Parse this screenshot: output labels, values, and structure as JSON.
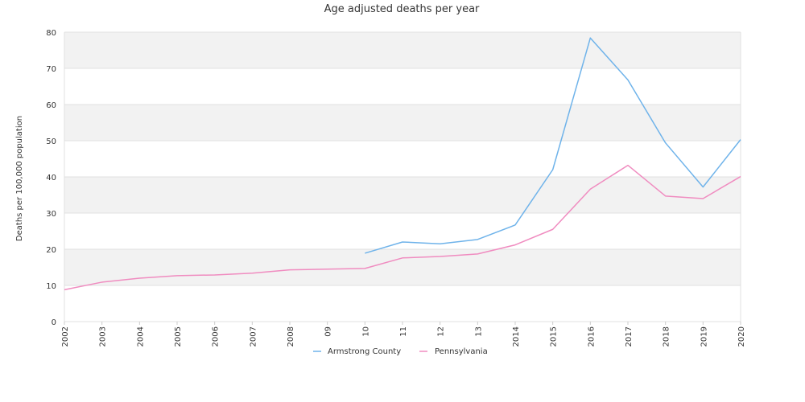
{
  "chart_data": {
    "type": "line",
    "title": "Age adjusted deaths per year",
    "xlabel": "",
    "ylabel": "Deaths per 100,000 population",
    "x": [
      "2002",
      "2003",
      "2004",
      "2005",
      "2006",
      "2007",
      "2008",
      "09",
      "10",
      "11",
      "12",
      "13",
      "2014",
      "2015",
      "2016",
      "2017",
      "2018",
      "2019",
      "2020"
    ],
    "ylim": [
      0,
      80
    ],
    "yticks": [
      0,
      10,
      20,
      30,
      40,
      50,
      60,
      70,
      80
    ],
    "grid": "horizontal bands",
    "legend_position": "bottom",
    "series": [
      {
        "name": "Armstrong County",
        "color": "#6fb3ea",
        "values": [
          null,
          null,
          null,
          null,
          null,
          null,
          null,
          null,
          18.9,
          22.0,
          21.5,
          22.7,
          26.7,
          42.0,
          78.4,
          66.8,
          49.4,
          37.2,
          50.3
        ]
      },
      {
        "name": "Pennsylvania",
        "color": "#f08cc0",
        "values": [
          8.8,
          10.9,
          12.0,
          12.7,
          12.9,
          13.4,
          14.3,
          14.5,
          14.7,
          17.6,
          18.0,
          18.7,
          21.2,
          25.5,
          36.6,
          43.2,
          34.7,
          34.0,
          40.1
        ]
      }
    ]
  }
}
